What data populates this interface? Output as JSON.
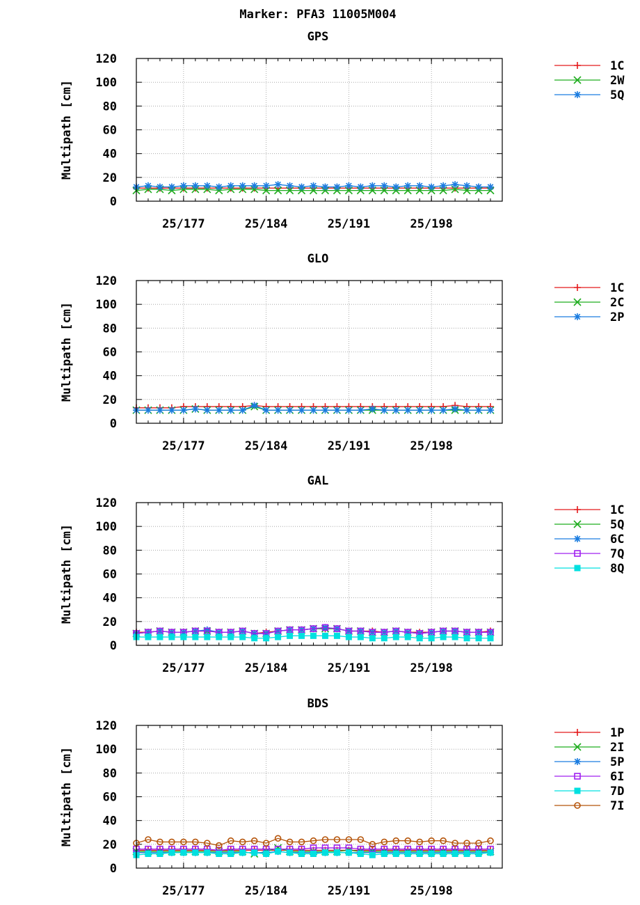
{
  "page_title": "Marker: PFA3 11005M004",
  "colors": {
    "1C": "#e41a1c",
    "1P": "#e41a1c",
    "2W": "#1fad1f",
    "2C": "#1fad1f",
    "5Q_gal": "#1fad1f",
    "2I": "#1fad1f",
    "5Q": "#1a7ce0",
    "2P": "#1a7ce0",
    "6C": "#1a7ce0",
    "5P": "#1a7ce0",
    "7Q": "#a020f0",
    "6I": "#a020f0",
    "8Q": "#00e0e0",
    "7D": "#00e0e0",
    "7I": "#b5540a"
  },
  "chart_data": [
    {
      "type": "line",
      "title": "GPS",
      "ylabel": "Multipath [cm]",
      "ylim": [
        0,
        120
      ],
      "yticks": [
        "0",
        "20",
        "40",
        "60",
        "80",
        "100",
        "120"
      ],
      "xlim": [
        173,
        204
      ],
      "xticks": [
        {
          "value": 177,
          "label": "25/177"
        },
        {
          "value": 184,
          "label": "25/184"
        },
        {
          "value": 191,
          "label": "25/191"
        },
        {
          "value": 198,
          "label": "25/198"
        }
      ],
      "grid": true,
      "legend_position": "right",
      "x": [
        173,
        174,
        175,
        176,
        177,
        178,
        179,
        180,
        181,
        182,
        183,
        184,
        185,
        186,
        187,
        188,
        189,
        190,
        191,
        192,
        193,
        194,
        195,
        196,
        197,
        198,
        199,
        200,
        201,
        202,
        203
      ],
      "series": [
        {
          "name": "1C",
          "marker": "plus",
          "color": "#e41a1c",
          "values": [
            11,
            11,
            11,
            11,
            11,
            11,
            11,
            11,
            11,
            11,
            11,
            11,
            11,
            11,
            11,
            11,
            11,
            11,
            11,
            11,
            11,
            11,
            11,
            11,
            11,
            11,
            11,
            11,
            11,
            11,
            11
          ]
        },
        {
          "name": "2W",
          "marker": "x",
          "color": "#1fad1f",
          "values": [
            9,
            10,
            10,
            9,
            10,
            10,
            10,
            9,
            10,
            10,
            10,
            9,
            9,
            9,
            9,
            9,
            9,
            9,
            9,
            9,
            9,
            9,
            9,
            9,
            9,
            9,
            9,
            10,
            9,
            9,
            9
          ]
        },
        {
          "name": "5Q",
          "marker": "star",
          "color": "#1a7ce0",
          "values": [
            12,
            13,
            12,
            12,
            13,
            13,
            13,
            12,
            13,
            13,
            13,
            13,
            14,
            13,
            12,
            13,
            12,
            12,
            13,
            12,
            13,
            13,
            12,
            13,
            13,
            12,
            13,
            14,
            13,
            12,
            12
          ]
        }
      ]
    },
    {
      "type": "line",
      "title": "GLO",
      "ylabel": "Multipath [cm]",
      "ylim": [
        0,
        120
      ],
      "yticks": [
        "0",
        "20",
        "40",
        "60",
        "80",
        "100",
        "120"
      ],
      "xlim": [
        173,
        204
      ],
      "xticks": [
        {
          "value": 177,
          "label": "25/177"
        },
        {
          "value": 184,
          "label": "25/184"
        },
        {
          "value": 191,
          "label": "25/191"
        },
        {
          "value": 198,
          "label": "25/198"
        }
      ],
      "grid": true,
      "legend_position": "right",
      "x": [
        173,
        174,
        175,
        176,
        177,
        178,
        179,
        180,
        181,
        182,
        183,
        184,
        185,
        186,
        187,
        188,
        189,
        190,
        191,
        192,
        193,
        194,
        195,
        196,
        197,
        198,
        199,
        200,
        201,
        202,
        203
      ],
      "series": [
        {
          "name": "1C",
          "marker": "plus",
          "color": "#e41a1c",
          "values": [
            13,
            13,
            13,
            13,
            14,
            14,
            14,
            14,
            14,
            14,
            15,
            14,
            14,
            14,
            14,
            14,
            14,
            14,
            14,
            14,
            14,
            14,
            14,
            14,
            14,
            14,
            14,
            15,
            14,
            14,
            14
          ]
        },
        {
          "name": "2C",
          "marker": "x",
          "color": "#1fad1f",
          "values": [
            11,
            11,
            11,
            11,
            11,
            12,
            11,
            11,
            11,
            11,
            14,
            11,
            11,
            11,
            11,
            11,
            11,
            11,
            11,
            11,
            11,
            11,
            11,
            11,
            11,
            11,
            11,
            11,
            11,
            11,
            11
          ]
        },
        {
          "name": "2P",
          "marker": "star",
          "color": "#1a7ce0",
          "values": [
            11,
            11,
            11,
            11,
            11,
            12,
            11,
            11,
            11,
            11,
            15,
            11,
            11,
            11,
            11,
            11,
            11,
            11,
            11,
            11,
            12,
            11,
            11,
            11,
            11,
            11,
            11,
            12,
            11,
            11,
            11
          ]
        }
      ]
    },
    {
      "type": "line",
      "title": "GAL",
      "ylabel": "Multipath [cm]",
      "ylim": [
        0,
        120
      ],
      "yticks": [
        "0",
        "20",
        "40",
        "60",
        "80",
        "100",
        "120"
      ],
      "xlim": [
        173,
        204
      ],
      "xticks": [
        {
          "value": 177,
          "label": "25/177"
        },
        {
          "value": 184,
          "label": "25/184"
        },
        {
          "value": 191,
          "label": "25/191"
        },
        {
          "value": 198,
          "label": "25/198"
        }
      ],
      "grid": true,
      "legend_position": "right",
      "x": [
        173,
        174,
        175,
        176,
        177,
        178,
        179,
        180,
        181,
        182,
        183,
        184,
        185,
        186,
        187,
        188,
        189,
        190,
        191,
        192,
        193,
        194,
        195,
        196,
        197,
        198,
        199,
        200,
        201,
        202,
        203
      ],
      "series": [
        {
          "name": "1C",
          "marker": "plus",
          "color": "#e41a1c",
          "values": [
            11,
            11,
            12,
            11,
            11,
            12,
            12,
            11,
            11,
            12,
            10,
            11,
            12,
            13,
            13,
            14,
            14,
            14,
            12,
            12,
            12,
            11,
            12,
            11,
            11,
            11,
            12,
            12,
            11,
            11,
            12
          ]
        },
        {
          "name": "5Q",
          "marker": "x",
          "color": "#1fad1f",
          "values": [
            10,
            11,
            12,
            11,
            11,
            12,
            12,
            11,
            11,
            12,
            10,
            10,
            12,
            13,
            13,
            14,
            14,
            14,
            12,
            12,
            11,
            11,
            12,
            11,
            10,
            11,
            12,
            12,
            11,
            11,
            11
          ]
        },
        {
          "name": "6C",
          "marker": "star",
          "color": "#1a7ce0",
          "values": [
            10,
            11,
            12,
            11,
            11,
            12,
            13,
            11,
            11,
            12,
            10,
            10,
            12,
            13,
            13,
            14,
            15,
            14,
            12,
            12,
            11,
            11,
            12,
            11,
            10,
            11,
            12,
            12,
            11,
            11,
            11
          ]
        },
        {
          "name": "7Q",
          "marker": "square-open",
          "color": "#a020f0",
          "values": [
            10,
            11,
            12,
            11,
            11,
            12,
            12,
            11,
            11,
            12,
            10,
            10,
            12,
            13,
            13,
            14,
            15,
            14,
            12,
            12,
            11,
            11,
            12,
            11,
            10,
            11,
            12,
            12,
            11,
            11,
            11
          ]
        },
        {
          "name": "8Q",
          "marker": "square-filled",
          "color": "#00e0e0",
          "values": [
            7,
            7,
            7,
            7,
            7,
            7,
            7,
            7,
            7,
            7,
            6,
            6,
            7,
            8,
            8,
            8,
            8,
            8,
            7,
            7,
            6,
            6,
            7,
            7,
            6,
            6,
            7,
            7,
            6,
            6,
            6
          ]
        }
      ]
    },
    {
      "type": "line",
      "title": "BDS",
      "ylabel": "Multipath [cm]",
      "ylim": [
        0,
        120
      ],
      "yticks": [
        "0",
        "20",
        "40",
        "60",
        "80",
        "100",
        "120"
      ],
      "xlim": [
        173,
        204
      ],
      "xticks": [
        {
          "value": 177,
          "label": "25/177"
        },
        {
          "value": 184,
          "label": "25/184"
        },
        {
          "value": 191,
          "label": "25/191"
        },
        {
          "value": 198,
          "label": "25/198"
        }
      ],
      "grid": true,
      "legend_position": "right",
      "x": [
        173,
        174,
        175,
        176,
        177,
        178,
        179,
        180,
        181,
        182,
        183,
        184,
        185,
        186,
        187,
        188,
        189,
        190,
        191,
        192,
        193,
        194,
        195,
        196,
        197,
        198,
        199,
        200,
        201,
        202,
        203
      ],
      "series": [
        {
          "name": "1P",
          "marker": "plus",
          "color": "#e41a1c",
          "values": [
            15,
            15,
            15,
            15,
            15,
            15,
            15,
            15,
            15,
            15,
            15,
            15,
            15,
            15,
            15,
            15,
            15,
            15,
            15,
            15,
            15,
            15,
            15,
            15,
            15,
            15,
            15,
            15,
            15,
            15,
            15
          ]
        },
        {
          "name": "2I",
          "marker": "x",
          "color": "#1fad1f",
          "values": [
            14,
            14,
            14,
            14,
            14,
            14,
            14,
            14,
            14,
            14,
            12,
            14,
            17,
            14,
            14,
            14,
            14,
            14,
            15,
            14,
            14,
            14,
            14,
            14,
            14,
            14,
            14,
            14,
            14,
            14,
            14
          ]
        },
        {
          "name": "5P",
          "marker": "star",
          "color": "#1a7ce0",
          "values": [
            13,
            13,
            13,
            13,
            13,
            13,
            13,
            13,
            13,
            13,
            13,
            13,
            14,
            13,
            13,
            13,
            13,
            13,
            13,
            13,
            13,
            13,
            13,
            13,
            13,
            13,
            13,
            13,
            13,
            13,
            13
          ]
        },
        {
          "name": "6I",
          "marker": "square-open",
          "color": "#a020f0",
          "values": [
            16,
            16,
            16,
            16,
            16,
            16,
            16,
            15,
            16,
            16,
            16,
            16,
            16,
            16,
            16,
            17,
            17,
            17,
            17,
            16,
            16,
            16,
            16,
            16,
            16,
            16,
            16,
            16,
            16,
            16,
            16
          ]
        },
        {
          "name": "7D",
          "marker": "square-filled",
          "color": "#00e0e0",
          "values": [
            11,
            12,
            12,
            13,
            13,
            13,
            13,
            12,
            12,
            13,
            13,
            12,
            14,
            13,
            12,
            12,
            13,
            13,
            13,
            12,
            11,
            12,
            12,
            12,
            12,
            12,
            12,
            12,
            12,
            12,
            13
          ]
        },
        {
          "name": "7I",
          "marker": "circle-open",
          "color": "#b5540a",
          "values": [
            21,
            24,
            22,
            22,
            22,
            22,
            21,
            19,
            23,
            22,
            23,
            21,
            25,
            22,
            22,
            23,
            24,
            24,
            24,
            24,
            20,
            22,
            23,
            23,
            22,
            23,
            23,
            21,
            21,
            21,
            23
          ]
        }
      ]
    }
  ]
}
